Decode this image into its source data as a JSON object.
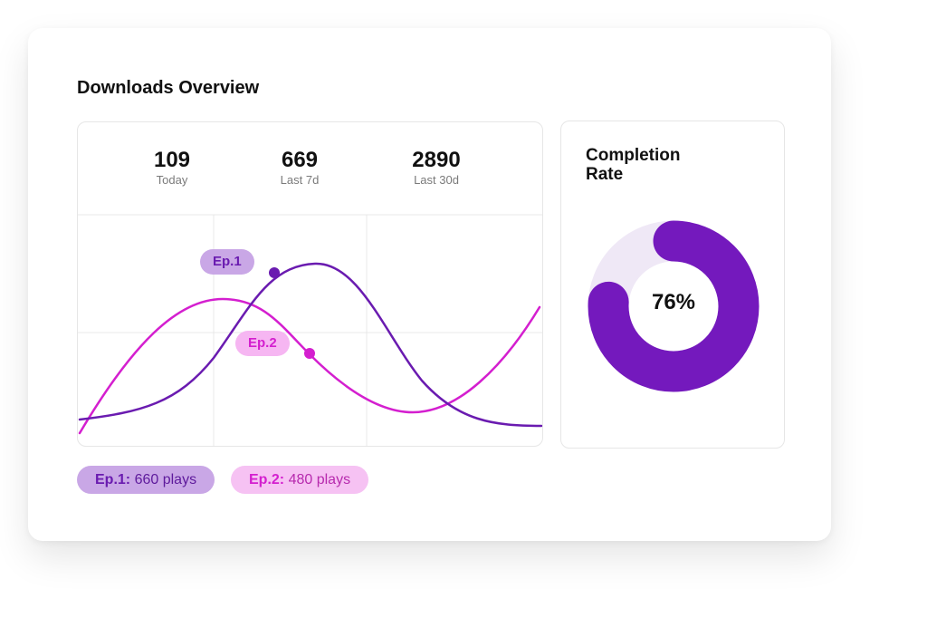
{
  "dashboard": {
    "title": "Downloads Overview"
  },
  "stats": [
    {
      "value": "109",
      "label": "Today"
    },
    {
      "value": "669",
      "label": "Last 7d"
    },
    {
      "value": "2890",
      "label": "Last 30d"
    }
  ],
  "chart_data": {
    "type": "line",
    "title": "",
    "xlabel": "",
    "ylabel": "",
    "grid": true,
    "series": [
      {
        "name": "Ep.1",
        "color": "#6a1bb0"
      },
      {
        "name": "Ep.2",
        "color": "#d41fcf"
      }
    ],
    "markers": [
      "Ep.1",
      "Ep.2"
    ]
  },
  "legend": [
    {
      "name": "Ep.1:",
      "value": "660 plays",
      "color": "#6a1bb0"
    },
    {
      "name": "Ep.2:",
      "value": "480 plays",
      "color": "#d41fcf"
    }
  ],
  "completion": {
    "title": "Completion Rate",
    "percent": 76,
    "label": "76%",
    "fill_color": "#7419bd",
    "track_color": "#efe8f6"
  }
}
